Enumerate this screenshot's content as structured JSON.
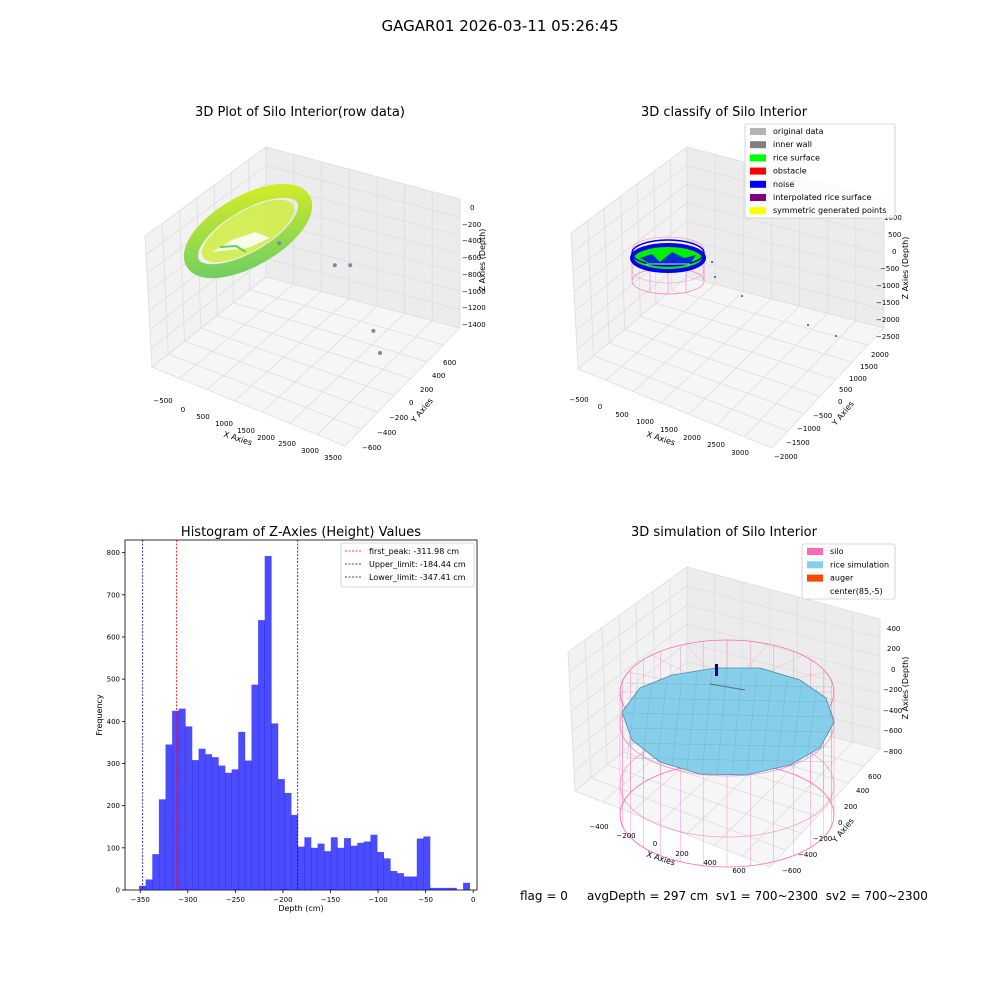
{
  "figure": {
    "title": "GAGAR01 2026-03-11 05:26:45",
    "status": {
      "flag": "flag = 0",
      "avg_depth": "avgDepth = 297 cm",
      "sv1": "sv1 = 700~2300",
      "sv2": "sv2 = 700~2300"
    }
  },
  "chart_data": [
    {
      "type": "scatter",
      "projection": "3d",
      "title": "3D Plot of Silo Interior(row data)",
      "xlabel": "X Axies",
      "ylabel": "Y Axies",
      "zlabel": "Z Axies (Depth)",
      "x_ticks": [
        "−500",
        "0",
        "500",
        "1000",
        "1500",
        "2000",
        "2500",
        "3000",
        "3500"
      ],
      "y_ticks": [
        "−600",
        "−400",
        "−200",
        "0",
        "200",
        "400",
        "600"
      ],
      "z_ticks": [
        "−1400",
        "−1200",
        "−1000",
        "−800",
        "−600",
        "−400",
        "−200",
        "0"
      ],
      "colors": {
        "surface_low": "#66cc66",
        "surface_high": "#ddee22",
        "outlier": "#6a8fb0"
      },
      "outliers": [
        {
          "x": 3000,
          "y": -500,
          "z": -1400
        },
        {
          "x": 2700,
          "y": -300,
          "z": -1250
        },
        {
          "x": 1400,
          "y": 400,
          "z": -1000
        },
        {
          "x": 1600,
          "y": 450,
          "z": -1000
        },
        {
          "x": 600,
          "y": 300,
          "z": -700
        }
      ]
    },
    {
      "type": "scatter",
      "projection": "3d",
      "title": "3D classify of Silo Interior",
      "xlabel": "X Axies",
      "ylabel": "Y Axies",
      "zlabel": "Z Axies (Depth)",
      "x_ticks": [
        "−500",
        "0",
        "500",
        "1000",
        "1500",
        "2000",
        "2500",
        "3000"
      ],
      "y_ticks": [
        "−2000",
        "−1500",
        "−1000",
        "−500",
        "0",
        "500",
        "1000",
        "1500",
        "2000"
      ],
      "z_ticks": [
        "−2500",
        "−2000",
        "−1500",
        "−1000",
        "−500",
        "0",
        "500",
        "1000"
      ],
      "legend_position": "top-right",
      "legend": [
        {
          "label": "original data",
          "color": "#b4b4b4"
        },
        {
          "label": "inner wall",
          "color": "#808080"
        },
        {
          "label": "rice surface",
          "color": "#00ff00"
        },
        {
          "label": "obstacle",
          "color": "#ff0000"
        },
        {
          "label": "noise",
          "color": "#0000ff"
        },
        {
          "label": "interpolated rice surface",
          "color": "#800080"
        },
        {
          "label": "symmetric generated points",
          "color": "#ffff00"
        }
      ]
    },
    {
      "type": "bar",
      "title": "Histogram of Z-Axies (Height) Values",
      "xlabel": "Depth (cm)",
      "ylabel": "Frequency",
      "xlim": [
        -366,
        4
      ],
      "ylim": [
        0,
        830
      ],
      "x_ticks": [
        -350,
        -300,
        -250,
        -200,
        -150,
        -100,
        -50,
        0
      ],
      "y_ticks": [
        0,
        100,
        200,
        300,
        400,
        500,
        600,
        700,
        800
      ],
      "bar_color": "#0000ff",
      "bin_start": -351.2,
      "bin_width": 6.95,
      "values": [
        10,
        25,
        85,
        215,
        345,
        425,
        430,
        388,
        308,
        335,
        322,
        315,
        295,
        278,
        286,
        375,
        307,
        487,
        640,
        792,
        395,
        263,
        230,
        178,
        103,
        125,
        100,
        110,
        92,
        125,
        100,
        123,
        105,
        112,
        115,
        131,
        90,
        75,
        45,
        40,
        32,
        32,
        122,
        127,
        5,
        5,
        5,
        5,
        0,
        17
      ],
      "vlines": [
        {
          "label": "first_peak: -311.98 cm",
          "x": -311.98,
          "color": "#ff0000"
        },
        {
          "label": "Upper_limit: -184.44 cm",
          "x": -184.44,
          "color": "#0000aa"
        },
        {
          "label": "Lower_limit: -347.41 cm",
          "x": -347.41,
          "color": "#0000aa"
        }
      ]
    },
    {
      "type": "area",
      "projection": "3d",
      "title": "3D simulation of Silo Interior",
      "xlabel": "X Axies",
      "ylabel": "Y Axies",
      "zlabel": "Z Axies (Depth)",
      "x_ticks": [
        "−400",
        "−200",
        "0",
        "200",
        "400",
        "600"
      ],
      "y_ticks": [
        "−600",
        "−400",
        "−200",
        "0",
        "200",
        "400",
        "600"
      ],
      "z_ticks": [
        "−800",
        "−600",
        "−400",
        "−200",
        "0",
        "200",
        "400"
      ],
      "legend_position": "top-right",
      "legend": [
        {
          "label": "silo",
          "color": "#ff69b4"
        },
        {
          "label": "rice simulation",
          "color": "#87ceeb"
        },
        {
          "label": "auger",
          "color": "#ff4500"
        },
        {
          "label": "center(85,-5)",
          "color": ""
        }
      ]
    }
  ]
}
